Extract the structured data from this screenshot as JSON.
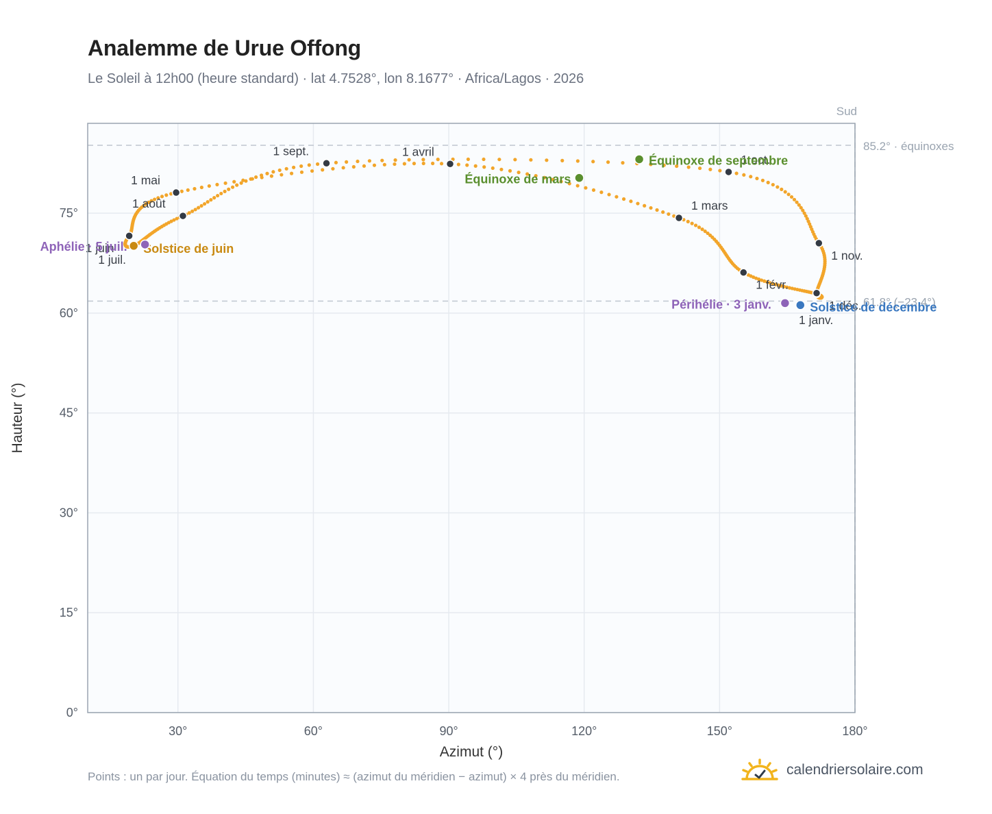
{
  "header": {
    "title": "Analemme de Urue Offong",
    "subtitle": "Le Soleil à 12h00 (heure standard) · lat 4.7528°, lon 8.1677° · Africa/Lagos · 2026"
  },
  "footer": {
    "note": "Points : un par jour. Équation du temps (minutes) ≈ (azimut du méridien − azimut) × 4 près du méridien.",
    "brand": "calendriersolaire.com",
    "brand_icon": "sun-logo-icon"
  },
  "colors": {
    "curve": "#f2a52a",
    "month_marker": "#333a44",
    "equinox": "#5a8f2e",
    "solstice_june": "#c98a12",
    "solstice_december": "#3a78c0",
    "apsis": "#8e63b8",
    "reference_line": "#c3c9d2",
    "grid": "#e6eaf0",
    "plot_bg": "#fafcfe",
    "axis": "#9aa4b0"
  },
  "chart_data": {
    "type": "scatter",
    "xlabel": "Azimut (°)",
    "ylabel": "Hauteur (°)",
    "xlim": [
      10,
      180
    ],
    "ylim": [
      0,
      88.5
    ],
    "x_ticks": [
      30,
      60,
      90,
      120,
      150,
      180
    ],
    "x_tick_labels": [
      "30°",
      "60°",
      "90°",
      "120°",
      "150°",
      "180°"
    ],
    "y_ticks": [
      0,
      15,
      30,
      45,
      60,
      75
    ],
    "y_tick_labels": [
      "0°",
      "15°",
      "30°",
      "45°",
      "60°",
      "75°"
    ],
    "grid": true,
    "south": {
      "azimuth": 180,
      "label": "Sud"
    },
    "reference_lines": [
      {
        "altitude": 85.2,
        "label": "85.2° · équinoxes"
      },
      {
        "altitude": 61.8,
        "label": "61.8° (−23.4°)"
      }
    ],
    "month_markers": [
      {
        "label": "1 janv.",
        "az": 171.5,
        "alt": 62.9
      },
      {
        "label": "1 févr.",
        "az": 155.3,
        "alt": 66.1
      },
      {
        "label": "1 mars",
        "az": 141.0,
        "alt": 74.3
      },
      {
        "label": "1 avril",
        "az": 90.3,
        "alt": 82.4
      },
      {
        "label": "1 mai",
        "az": 29.6,
        "alt": 78.1
      },
      {
        "label": "1 juin",
        "az": 19.2,
        "alt": 71.6
      },
      {
        "label": "1 juil.",
        "az": 20.2,
        "alt": 70.1
      },
      {
        "label": "1 août",
        "az": 31.1,
        "alt": 74.6
      },
      {
        "label": "1 sept.",
        "az": 62.9,
        "alt": 82.5
      },
      {
        "label": "1 oct.",
        "az": 152.0,
        "alt": 81.2
      },
      {
        "label": "1 nov.",
        "az": 172.0,
        "alt": 70.5
      },
      {
        "label": "1 déc.",
        "az": 171.5,
        "alt": 63.0
      }
    ],
    "events": [
      {
        "label": "Équinoxe de mars",
        "az": 118.9,
        "alt": 80.3,
        "kind": "equinox"
      },
      {
        "label": "Équinoxe de septembre",
        "az": 132.2,
        "alt": 83.1,
        "kind": "equinox"
      },
      {
        "label": "Solstice de juin",
        "az": 20.2,
        "alt": 70.1,
        "kind": "solstice_june"
      },
      {
        "label": "Solstice de décembre",
        "az": 167.9,
        "alt": 61.2,
        "kind": "solstice_december"
      },
      {
        "label": "Aphélie · 5 juil.",
        "az": 22.7,
        "alt": 70.3,
        "kind": "apsis"
      },
      {
        "label": "Périhélie · 3 janv.",
        "az": 164.5,
        "alt": 61.5,
        "kind": "apsis"
      }
    ]
  }
}
